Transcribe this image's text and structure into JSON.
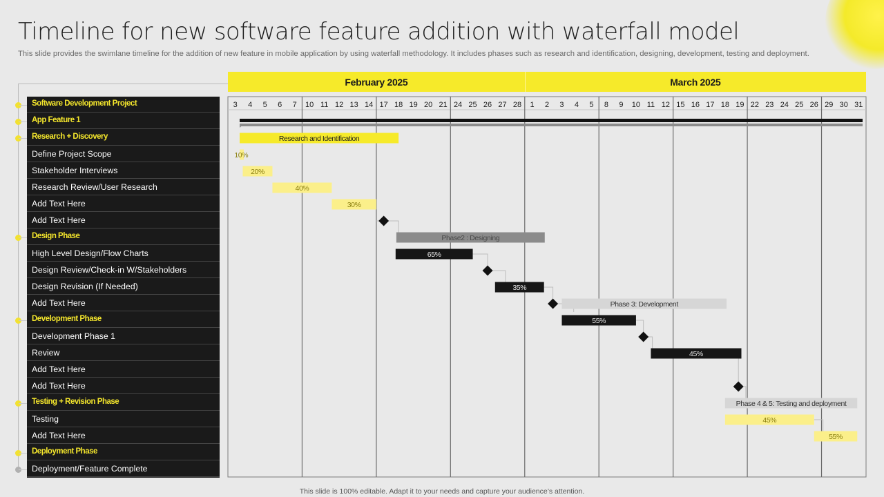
{
  "header": {
    "title": "Timeline for new software feature addition with waterfall model",
    "subtitle": "This slide provides the swimlane timeline for the addition of new feature in mobile application by using waterfall methodology. It includes phases such as research and identification, designing, development, testing and deployment."
  },
  "footer": {
    "note": "This slide is 100% editable.  Adapt it to your needs and capture your audience’s attention."
  },
  "colors": {
    "yellow": "#f6ea2a",
    "light_yellow": "#fbef8a",
    "dark": "#161616",
    "grey": "#8b8b8b",
    "light_grey": "#d6d6d6",
    "panel": "#1a1a1a",
    "phase_label": "#f4e62c"
  },
  "tasks": [
    {
      "label": "Software Development Project",
      "type": "phase"
    },
    {
      "label": "App Feature 1",
      "type": "phase"
    },
    {
      "label": "Research + Discovery",
      "type": "phase"
    },
    {
      "label": "Define Project Scope",
      "type": "task"
    },
    {
      "label": "Stakeholder Interviews",
      "type": "task"
    },
    {
      "label": "Research Review/User Research",
      "type": "task"
    },
    {
      "label": "Add Text Here",
      "type": "task"
    },
    {
      "label": "Add Text Here",
      "type": "task"
    },
    {
      "label": "Design Phase",
      "type": "phase"
    },
    {
      "label": "High Level Design/Flow Charts",
      "type": "task"
    },
    {
      "label": "Design Review/Check-in W/Stakeholders",
      "type": "task"
    },
    {
      "label": "Design Revision (If Needed)",
      "type": "task"
    },
    {
      "label": "Add Text Here",
      "type": "task"
    },
    {
      "label": "Development Phase",
      "type": "phase"
    },
    {
      "label": "Development Phase 1",
      "type": "task"
    },
    {
      "label": "Review",
      "type": "task"
    },
    {
      "label": "Add Text Here",
      "type": "task"
    },
    {
      "label": "Add Text Here",
      "type": "task"
    },
    {
      "label": "Testing + Revision Phase",
      "type": "phase"
    },
    {
      "label": "Testing",
      "type": "task"
    },
    {
      "label": "Add Text Here",
      "type": "task"
    },
    {
      "label": "Deployment Phase",
      "type": "phase"
    },
    {
      "label": "Deployment/Feature Complete",
      "type": "task"
    }
  ],
  "chart_data": {
    "type": "gantt",
    "months": [
      {
        "label": "February 2025",
        "days": [
          "3",
          "4",
          "5",
          "6",
          "7",
          "10",
          "11",
          "12",
          "13",
          "14",
          "17",
          "18",
          "19",
          "20",
          "21",
          "24",
          "25",
          "26",
          "27",
          "28"
        ]
      },
      {
        "label": "March 2025",
        "days": [
          "1",
          "2",
          "3",
          "4",
          "5",
          "8",
          "9",
          "10",
          "11",
          "12",
          "15",
          "16",
          "17",
          "18",
          "19",
          "22",
          "23",
          "24",
          "25",
          "26",
          "29",
          "30",
          "31"
        ]
      }
    ],
    "bars": [
      {
        "row": 1,
        "start": 0,
        "end": 43,
        "style": "thin-dark"
      },
      {
        "row": 1,
        "start": 0,
        "end": 43,
        "style": "thin-grey"
      },
      {
        "row": 2,
        "start": 0,
        "end": 11.5,
        "label": "Research and Identification",
        "style": "yellow"
      },
      {
        "row": 3,
        "start": 0,
        "end": 1,
        "label": "10%",
        "style": "light-yellow"
      },
      {
        "row": 4,
        "start": 1,
        "end": 3,
        "label": "20%",
        "style": "light-yellow"
      },
      {
        "row": 5,
        "start": 3,
        "end": 7,
        "label": "40%",
        "style": "light-yellow"
      },
      {
        "row": 6,
        "start": 7,
        "end": 10,
        "label": "30%",
        "style": "light-yellow"
      },
      {
        "row": 8,
        "start": 11.35,
        "end": 21.35,
        "label": "Phase2 : Designing",
        "style": "grey"
      },
      {
        "row": 9,
        "start": 11.3,
        "end": 16.5,
        "label": "65%",
        "style": "dark"
      },
      {
        "row": 11,
        "start": 18,
        "end": 21.3,
        "label": "35%",
        "style": "dark"
      },
      {
        "row": 12,
        "start": 22.5,
        "end": 33.6,
        "label": "Phase 3: Development",
        "style": "light-grey"
      },
      {
        "row": 13,
        "start": 22.5,
        "end": 27.5,
        "label": "55%",
        "style": "dark"
      },
      {
        "row": 15,
        "start": 28.5,
        "end": 34.6,
        "label": "45%",
        "style": "dark"
      },
      {
        "row": 18,
        "start": 33.5,
        "end": 42.5,
        "label": "Phase 4 & 5: Testing and deployment",
        "style": "light-grey"
      },
      {
        "row": 19,
        "start": 33.5,
        "end": 39.5,
        "label": "45%",
        "style": "light-yellow"
      },
      {
        "row": 20,
        "start": 39.5,
        "end": 42.5,
        "label": "55%",
        "style": "light-yellow"
      }
    ],
    "milestones": [
      {
        "row": 7,
        "at": 10.5
      },
      {
        "row": 10,
        "at": 17.5
      },
      {
        "row": 12,
        "at": 21.9
      },
      {
        "row": 14,
        "at": 28
      },
      {
        "row": 17,
        "at": 34.4
      }
    ]
  }
}
